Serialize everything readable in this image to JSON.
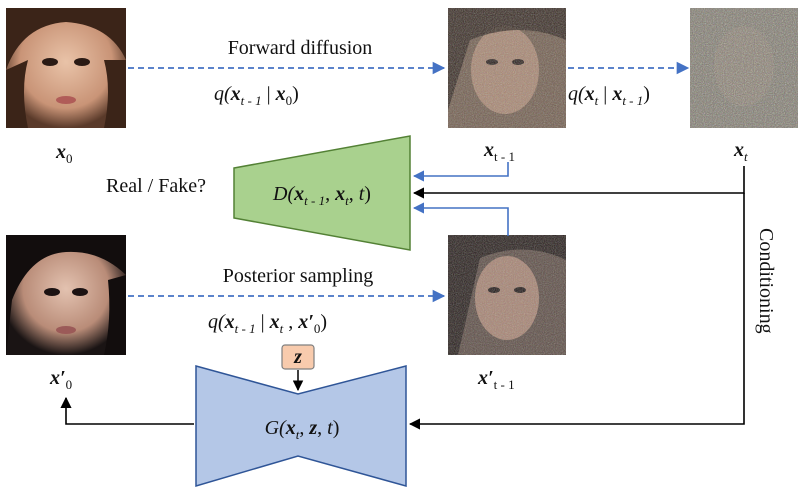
{
  "images": {
    "x0_caption_main": "x",
    "x0_caption_sub": "0",
    "xt1_caption_main": "x",
    "xt1_caption_sub": "t - 1",
    "xt_caption_main": "x",
    "xt_caption_sub": "t",
    "x0p_caption_main": "x′",
    "x0p_caption_sub": "0",
    "xt1p_caption_main": "x′",
    "xt1p_caption_sub": "t - 1"
  },
  "labels": {
    "forward_diffusion": "Forward diffusion",
    "forward_eq_open": "q(",
    "forward_eq_x1": "x",
    "forward_eq_x1_sub": "t - 1",
    "forward_eq_bar": " | ",
    "forward_eq_x2": "x",
    "forward_eq_x2_sub": "0",
    "forward_eq_close": ")",
    "step_eq_open": "q(",
    "step_eq_x1": "x",
    "step_eq_x1_sub": "t",
    "step_eq_bar": " | ",
    "step_eq_x2": "x",
    "step_eq_x2_sub": "t - 1",
    "step_eq_close": ")",
    "posterior_sampling": "Posterior sampling",
    "post_eq_open": "q(",
    "post_eq_x1": "x",
    "post_eq_x1_sub": "t - 1",
    "post_eq_bar": " | ",
    "post_eq_x2": "x",
    "post_eq_x2_sub": "t",
    "post_eq_comma": " , ",
    "post_eq_x3": "x′",
    "post_eq_x3_sub": "0",
    "post_eq_close": ")",
    "real_fake": "Real / Fake?",
    "conditioning": "Conditioning",
    "z_box": "z"
  },
  "discriminator": {
    "d_open": "D(",
    "x1": "x",
    "x1_sub": "t - 1",
    "comma1": ", ",
    "x2": "x",
    "x2_sub": "t",
    "comma2": ", ",
    "t": "t",
    "close": ")",
    "fill": "#a9d18e",
    "stroke": "#538135"
  },
  "generator": {
    "g_open": "G(",
    "x": "x",
    "x_sub": "t",
    "comma1": ", ",
    "z": "z",
    "comma2": ", ",
    "t": "t",
    "close": ")",
    "fill": "#b4c7e7",
    "stroke": "#2f5597"
  },
  "colors": {
    "arrow_blue": "#4472c4",
    "arrow_black": "#000000",
    "z_fill": "#f8cbad",
    "z_stroke": "#7f7f7f"
  }
}
